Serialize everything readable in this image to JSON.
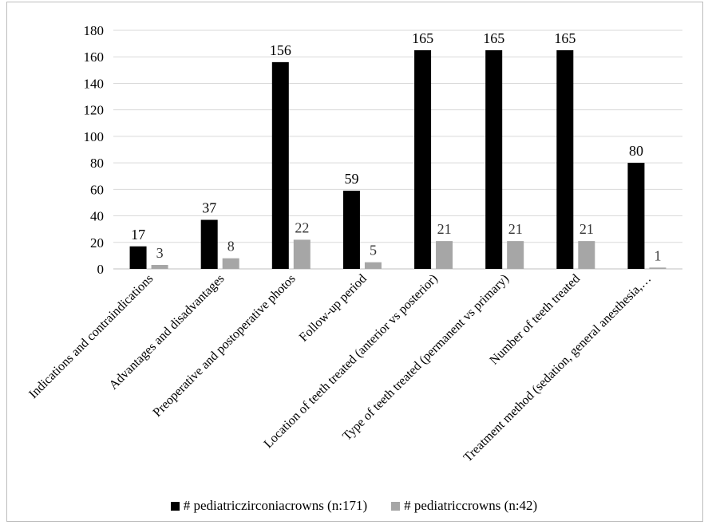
{
  "chart_data": {
    "type": "bar",
    "categories": [
      "Indications and contraindications",
      "Advantages and disadvantages",
      "Preoperative and postoperative photos",
      "Follow-up period",
      "Location of teeth treated (anterior vs posterior)",
      "Type of teeth treated (permanent vs primary)",
      "Number of teeth treated",
      "Treatment method (sedation, general anesthesia,…"
    ],
    "series": [
      {
        "name": "# pediatriczirconiacrowns (n:171)",
        "color": "#000000",
        "values": [
          17,
          37,
          156,
          59,
          165,
          165,
          165,
          80
        ]
      },
      {
        "name": "# pediatriccrowns (n:42)",
        "color": "#a6a6a6",
        "values": [
          3,
          8,
          22,
          5,
          21,
          21,
          21,
          1
        ]
      }
    ],
    "ylim": [
      0,
      180
    ],
    "yticks": [
      "0",
      "20",
      "40",
      "60",
      "80",
      "100",
      "120",
      "140",
      "160",
      "180"
    ],
    "grid": true,
    "legend_position": "bottom"
  }
}
